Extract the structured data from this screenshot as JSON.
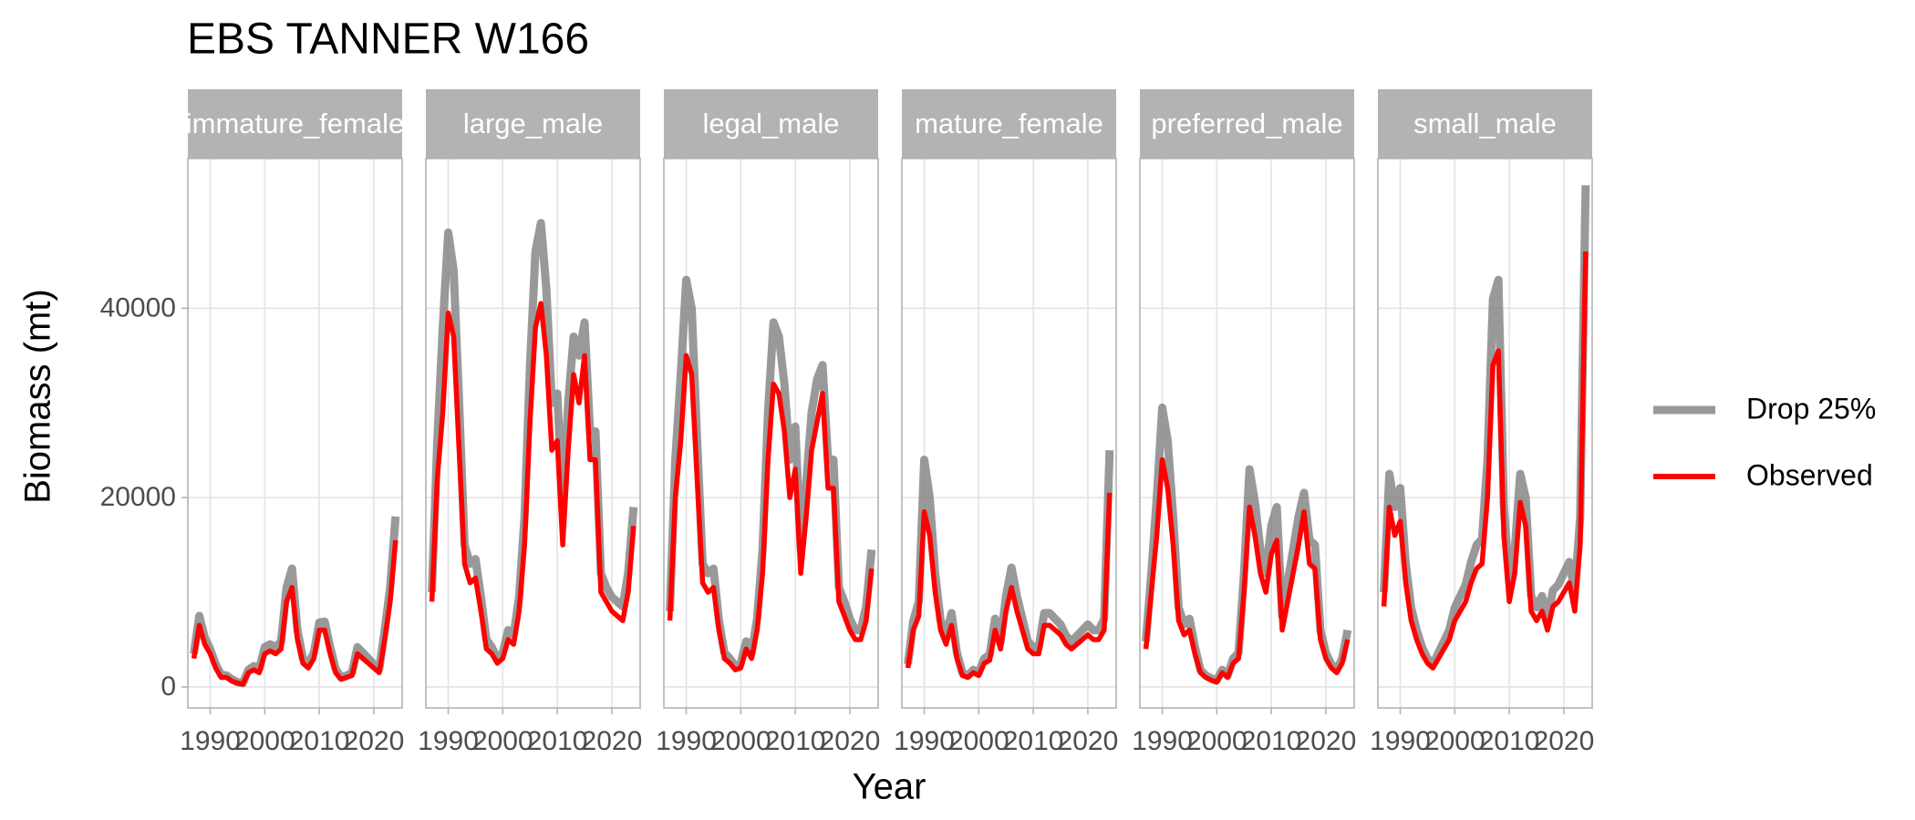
{
  "chart_data": {
    "type": "line",
    "title": "EBS TANNER W166",
    "x_label": "Year",
    "y_label": "Biomass (mt)",
    "xlim": [
      1985.9,
      2025.2
    ],
    "xticks": [
      1990,
      2000,
      2010,
      2020
    ],
    "ylim": [
      -2222,
      55817
    ],
    "yticks": [
      0,
      20000,
      40000
    ],
    "grid": true,
    "legend": "right",
    "x": [
      1987,
      1988,
      1989,
      1990,
      1991,
      1992,
      1993,
      1994,
      1995,
      1996,
      1997,
      1998,
      1999,
      2000,
      2001,
      2002,
      2003,
      2004,
      2005,
      2006,
      2007,
      2008,
      2009,
      2010,
      2011,
      2012,
      2013,
      2014,
      2015,
      2016,
      2017,
      2018,
      2019,
      2020,
      2021,
      2022,
      2023,
      2024
    ],
    "panels": [
      {
        "title": "immature_female",
        "series": [
          {
            "name": "Drop 25%",
            "color": "#808080",
            "values": [
              3500,
              7500,
              5200,
              4000,
              2400,
              1300,
              1200,
              800,
              500,
              400,
              1800,
              2200,
              1900,
              4200,
              4500,
              4200,
              4800,
              10500,
              12500,
              6000,
              3000,
              2500,
              3600,
              6800,
              6900,
              4200,
              1900,
              1000,
              1200,
              1500,
              4200,
              3600,
              3000,
              2400,
              1900,
              6000,
              10500,
              18000
            ]
          },
          {
            "name": "Observed",
            "color": "#ff0000",
            "values": [
              3000,
              6500,
              4500,
              3500,
              2000,
              1000,
              1000,
              600,
              400,
              300,
              1500,
              1800,
              1500,
              3500,
              3800,
              3500,
              4000,
              9000,
              10500,
              5000,
              2500,
              2000,
              3000,
              6000,
              6000,
              3500,
              1500,
              800,
              1000,
              1200,
              3500,
              3000,
              2500,
              2000,
              1500,
              5000,
              9000,
              15500
            ]
          }
        ]
      },
      {
        "title": "large_male",
        "series": [
          {
            "name": "Drop 25%",
            "color": "#808080",
            "values": [
              10000,
              26000,
              38000,
              48000,
              44000,
              30000,
              15000,
              13000,
              13500,
              9500,
              5000,
              4200,
              3000,
              3600,
              6000,
              5500,
              9500,
              18000,
              34000,
              46000,
              49000,
              42000,
              30000,
              31000,
              19000,
              30000,
              37000,
              35000,
              38500,
              27000,
              27000,
              12000,
              10500,
              9500,
              9000,
              8500,
              12000,
              19000
            ]
          },
          {
            "name": "Observed",
            "color": "#ff0000",
            "values": [
              9000,
              22000,
              29000,
              39500,
              37000,
              25000,
              13000,
              11000,
              11500,
              8000,
              4000,
              3500,
              2500,
              3000,
              5000,
              4500,
              8000,
              15000,
              28000,
              38000,
              40500,
              35000,
              25000,
              26000,
              15000,
              25000,
              33000,
              30000,
              35000,
              24000,
              24000,
              10000,
              9000,
              8000,
              7500,
              7000,
              10000,
              17000
            ]
          }
        ]
      },
      {
        "title": "legal_male",
        "series": [
          {
            "name": "Drop 25%",
            "color": "#808080",
            "values": [
              8000,
              24000,
              33000,
              43000,
              40000,
              26000,
              13000,
              12000,
              12500,
              7000,
              3600,
              3000,
              2200,
              2500,
              4800,
              3600,
              7200,
              14500,
              29000,
              38500,
              37000,
              32000,
              24000,
              27500,
              14500,
              21500,
              29000,
              32500,
              34000,
              24000,
              24000,
              10500,
              9000,
              7200,
              6000,
              6000,
              8500,
              14500
            ]
          },
          {
            "name": "Observed",
            "color": "#ff0000",
            "values": [
              7000,
              20000,
              26000,
              35000,
              33000,
              22000,
              11000,
              10000,
              10500,
              6000,
              3000,
              2500,
              1800,
              2000,
              4000,
              3000,
              6000,
              12000,
              24000,
              32000,
              31000,
              27000,
              20000,
              23000,
              12000,
              18000,
              25000,
              28000,
              31000,
              21000,
              21000,
              9000,
              7500,
              6000,
              5000,
              5000,
              7000,
              12500
            ]
          }
        ]
      },
      {
        "title": "mature_female",
        "series": [
          {
            "name": "Drop 25%",
            "color": "#808080",
            "values": [
              2400,
              7000,
              9000,
              24000,
              20000,
              12000,
              7000,
              5400,
              7800,
              3600,
              1500,
              1200,
              1800,
              1500,
              3000,
              3400,
              7200,
              4800,
              9600,
              12600,
              9600,
              7200,
              4800,
              4200,
              4200,
              7800,
              7800,
              7200,
              6600,
              5400,
              4800,
              5400,
              6000,
              6600,
              6000,
              6000,
              7200,
              25000
            ]
          },
          {
            "name": "Observed",
            "color": "#ff0000",
            "values": [
              2000,
              6000,
              7500,
              18500,
              16000,
              10000,
              6000,
              4500,
              6500,
              3000,
              1200,
              1000,
              1500,
              1200,
              2500,
              2800,
              6000,
              4000,
              8000,
              10500,
              8000,
              6000,
              4000,
              3500,
              3500,
              6500,
              6500,
              6000,
              5500,
              4500,
              4000,
              4500,
              5000,
              5500,
              5000,
              5000,
              6000,
              20500
            ]
          }
        ]
      },
      {
        "title": "preferred_male",
        "series": [
          {
            "name": "Drop 25%",
            "color": "#808080",
            "values": [
              4800,
              12000,
              20000,
              29500,
              26000,
              18000,
              8400,
              6600,
              7200,
              4200,
              1800,
              1200,
              900,
              700,
              1800,
              1200,
              3000,
              3600,
              12000,
              23000,
              19500,
              14500,
              12000,
              17000,
              19000,
              7500,
              11000,
              14500,
              18000,
              20500,
              15500,
              15000,
              6000,
              3600,
              2400,
              1800,
              3000,
              6000
            ]
          },
          {
            "name": "Observed",
            "color": "#ff0000",
            "values": [
              4000,
              10000,
              16000,
              24000,
              21000,
              15000,
              7000,
              5500,
              6000,
              3500,
              1500,
              1000,
              700,
              500,
              1500,
              1000,
              2500,
              3000,
              10000,
              19000,
              16000,
              12000,
              10000,
              14000,
              15500,
              6000,
              9000,
              12000,
              15000,
              18500,
              13000,
              12500,
              5000,
              3000,
              2000,
              1500,
              2500,
              5000
            ]
          }
        ]
      },
      {
        "title": "small_male",
        "series": [
          {
            "name": "Drop 25%",
            "color": "#808080",
            "values": [
              10000,
              22500,
              19000,
              21000,
              13000,
              8400,
              6000,
              4200,
              3000,
              2400,
              3600,
              4800,
              6000,
              8400,
              9600,
              10800,
              13200,
              15000,
              15600,
              24000,
              41000,
              43000,
              19000,
              11000,
              14500,
              22500,
              20000,
              9600,
              8400,
              9600,
              7200,
              10200,
              10800,
              12000,
              13200,
              10000,
              18000,
              53000
            ]
          },
          {
            "name": "Observed",
            "color": "#ff0000",
            "values": [
              8500,
              19000,
              16000,
              17500,
              11000,
              7000,
              5000,
              3500,
              2500,
              2000,
              3000,
              4000,
              5000,
              7000,
              8000,
              9000,
              11000,
              12500,
              13000,
              20000,
              34000,
              35500,
              16000,
              9000,
              12000,
              19500,
              17000,
              8000,
              7000,
              8000,
              6000,
              8500,
              9000,
              10000,
              11000,
              8000,
              15000,
              46000
            ]
          }
        ]
      }
    ]
  }
}
